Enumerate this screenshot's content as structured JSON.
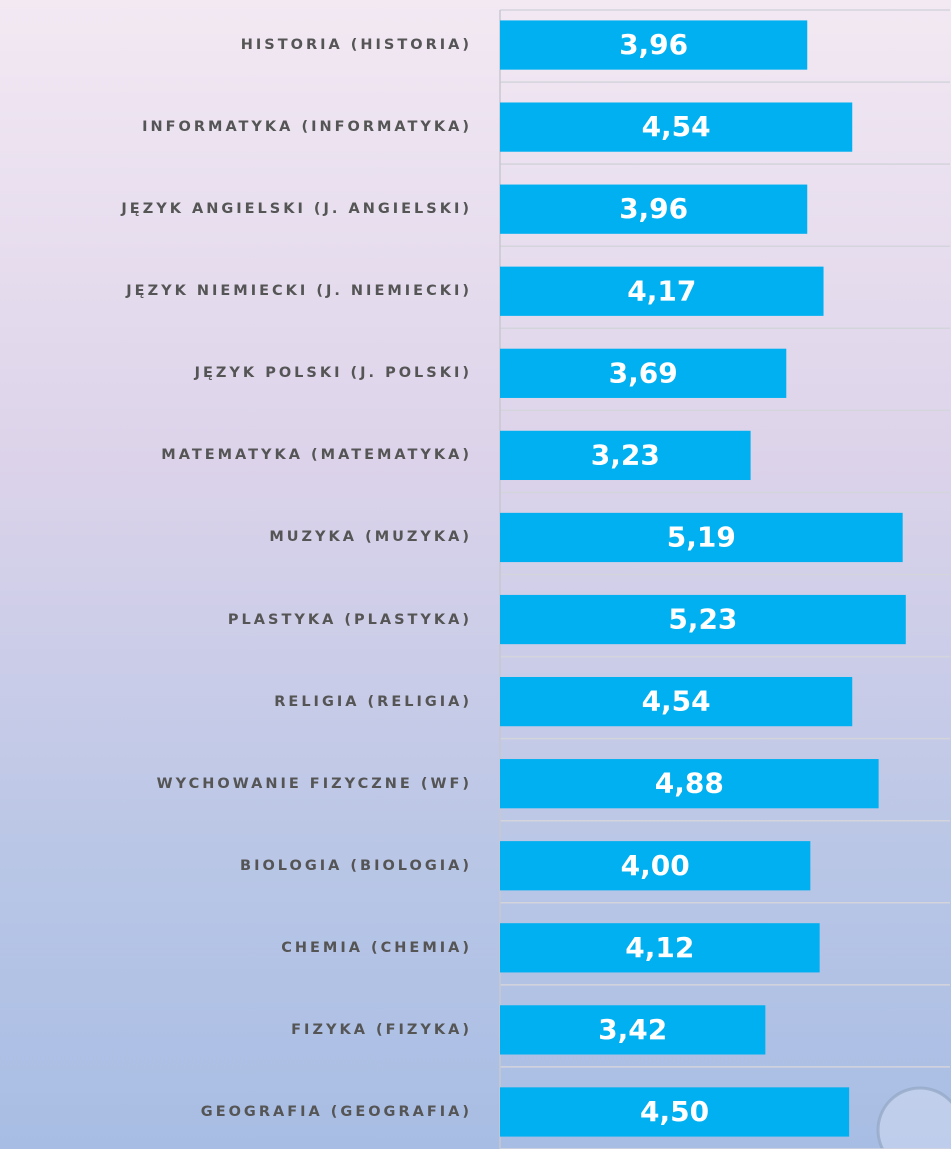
{
  "chart_data": {
    "type": "hbar",
    "categories": [
      "HISTORIA (HISTORIA)",
      "INFORMATYKA (INFORMATYKA)",
      "JĘZYK ANGIELSKI (J. ANGIELSKI)",
      "JĘZYK NIEMIECKI (J. NIEMIECKI)",
      "JĘZYK POLSKI (J. POLSKI)",
      "MATEMATYKA (MATEMATYKA)",
      "MUZYKA (MUZYKA)",
      "PLASTYKA (PLASTYKA)",
      "RELIGIA (RELIGIA)",
      "WYCHOWANIE FIZYCZNE (WF)",
      "BIOLOGIA (BIOLOGIA)",
      "CHEMIA (CHEMIA)",
      "FIZYKA (FIZYKA)",
      "GEOGRAFIA (GEOGRAFIA)"
    ],
    "values": [
      3.96,
      4.54,
      3.96,
      4.17,
      3.69,
      3.23,
      5.19,
      5.23,
      4.54,
      4.88,
      4.0,
      4.12,
      3.42,
      4.5
    ],
    "value_labels": [
      "3,96",
      "4,54",
      "3,96",
      "4,17",
      "3,69",
      "3,23",
      "5,19",
      "5,23",
      "4,54",
      "4,88",
      "4,00",
      "4,12",
      "3,42",
      "4,50"
    ],
    "color": "#00b0f0",
    "xlim": [
      0,
      5.8
    ]
  }
}
